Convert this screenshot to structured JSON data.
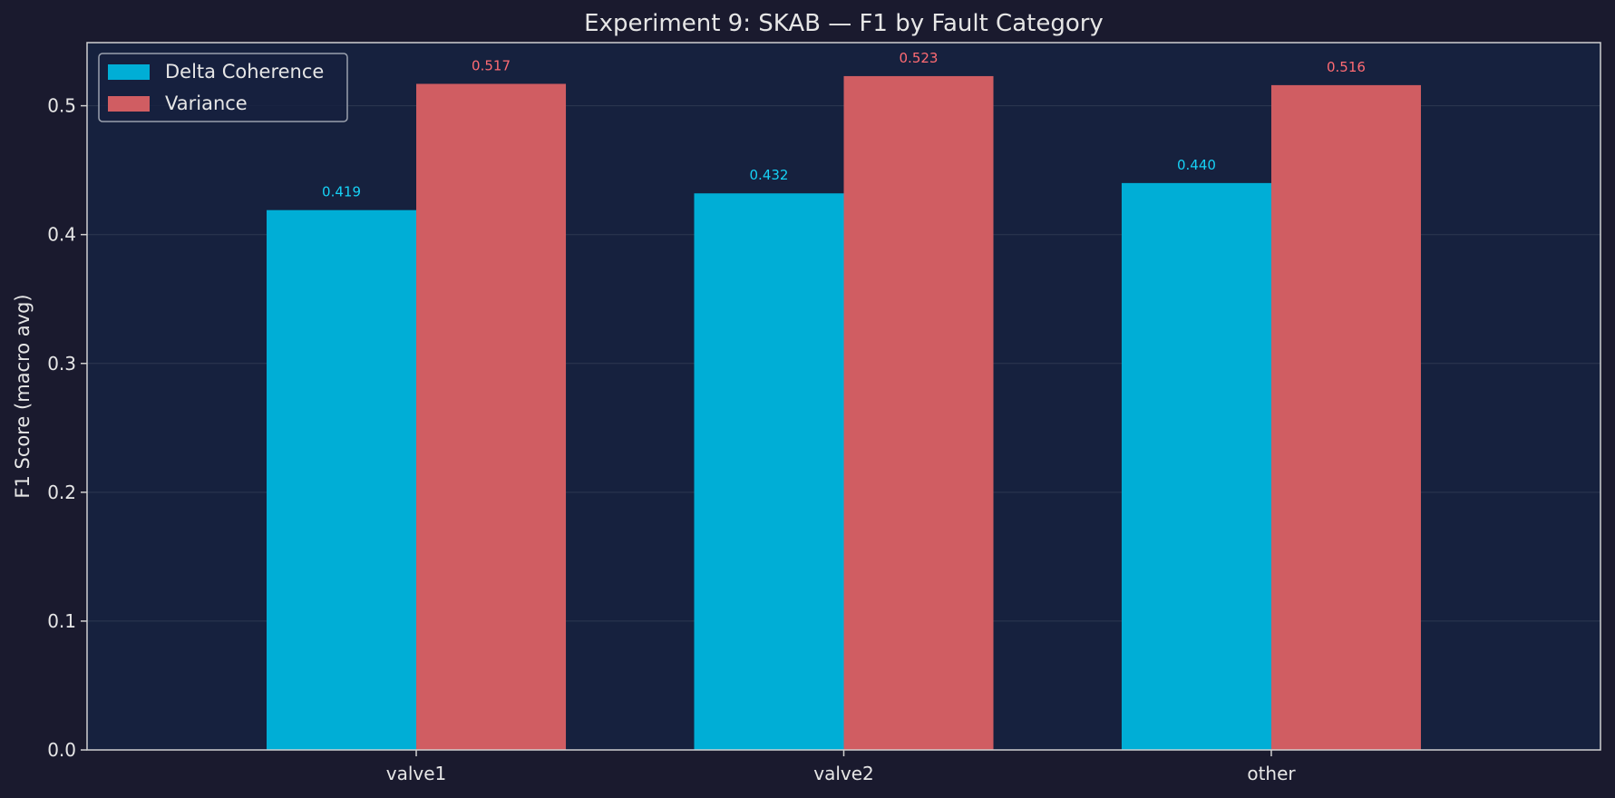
{
  "chart_data": {
    "type": "bar",
    "title": "Experiment 9: SKAB — F1 by Fault Category",
    "xlabel": "",
    "ylabel": "F1 Score (macro avg)",
    "categories": [
      "valve1",
      "valve2",
      "other"
    ],
    "series": [
      {
        "name": "Delta Coherence",
        "values": [
          0.419,
          0.432,
          0.44
        ],
        "labels": [
          "0.419",
          "0.432",
          "0.440"
        ],
        "color": "#00aed6",
        "label_color": "#16d1f5"
      },
      {
        "name": "Variance",
        "values": [
          0.517,
          0.523,
          0.516
        ],
        "labels": [
          "0.517",
          "0.523",
          "0.516"
        ],
        "color": "#d05d62",
        "label_color": "#ff6b73"
      }
    ],
    "ylim": [
      0,
      0.549
    ],
    "yticks": [
      0.0,
      0.1,
      0.2,
      0.3,
      0.4,
      0.5
    ],
    "ytick_labels": [
      "0.0",
      "0.1",
      "0.2",
      "0.3",
      "0.4",
      "0.5"
    ],
    "grid": true,
    "legend_position": "top-left",
    "colors": {
      "figure_background": "#1a1a2e",
      "plot_background": "#16213e",
      "grid": "#4a5468",
      "text": "#e6e6e6",
      "spine": "#d0d0d0"
    }
  }
}
